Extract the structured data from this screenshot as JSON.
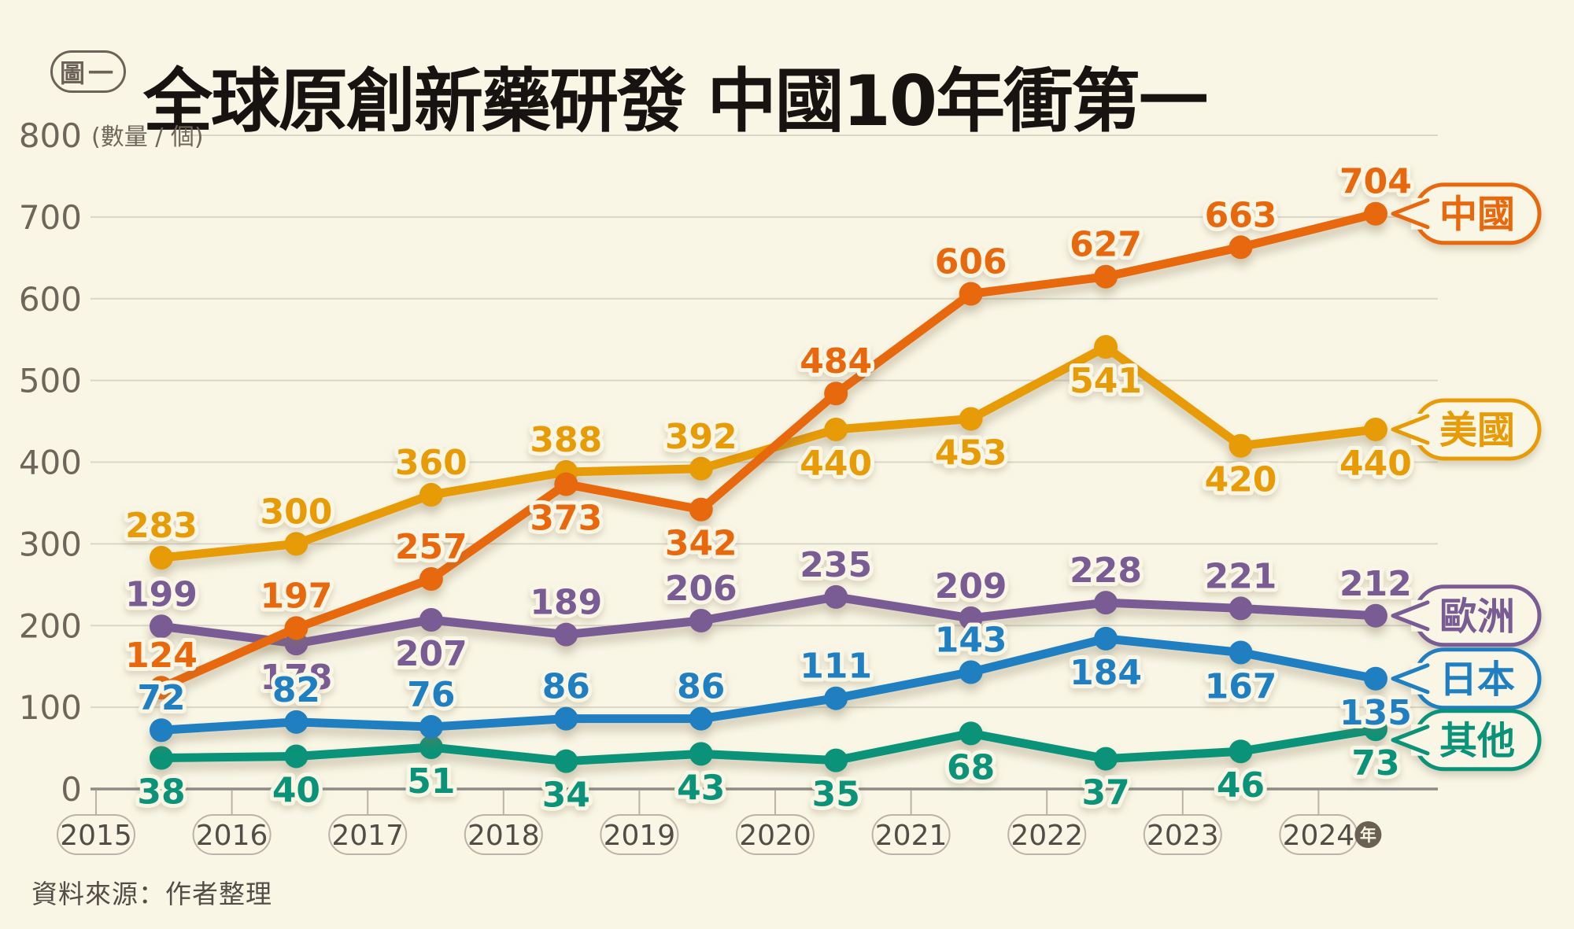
{
  "figure_badge": {
    "text": "圖一"
  },
  "title": "全球原創新藥研發 中國10年衝第一",
  "source": "資料來源：作者整理",
  "ui_colors": {
    "background": "#F9F6E5",
    "title": "#161310",
    "grid": "#DAD7C8",
    "axis": "#8C8C86",
    "tick": "#B9B4A7",
    "pill_border": "#B9B4A7",
    "y_label": "#6E665B",
    "year_label": "#524D46",
    "year_badge_bg": "#6B6054",
    "year_badge_text": "#F9F6E5",
    "figure_badge": "#6B6358",
    "source_text": "#524D46"
  },
  "chart_data": {
    "type": "line",
    "title": "全球原創新藥研發 中國10年衝第一",
    "unit_label": "(數量 / 個)",
    "ylabel": "數量/個",
    "xlabel": "年",
    "ylim": [
      0,
      800
    ],
    "y_ticks": [
      0,
      100,
      200,
      300,
      400,
      500,
      600,
      700,
      800
    ],
    "grid": true,
    "legend_position": "right",
    "x_unit_badge": "年",
    "categories": [
      "2015",
      "2016",
      "2017",
      "2018",
      "2019",
      "2020",
      "2021",
      "2022",
      "2023",
      "2024"
    ],
    "series": [
      {
        "id": "china",
        "name": "中國",
        "color": "#E8680E",
        "values": [
          124,
          197,
          257,
          373,
          342,
          484,
          606,
          627,
          663,
          704
        ],
        "label_side": [
          "above",
          "above",
          "above",
          "below",
          "below",
          "above",
          "above",
          "above",
          "above",
          "above"
        ]
      },
      {
        "id": "usa",
        "name": "美國",
        "color": "#E79B06",
        "values": [
          283,
          300,
          360,
          388,
          392,
          440,
          453,
          541,
          420,
          440
        ],
        "label_side": [
          "above",
          "above",
          "above",
          "above",
          "above",
          "below",
          "below",
          "below",
          "below",
          "below"
        ]
      },
      {
        "id": "europe",
        "name": "歐洲",
        "color": "#7A5C94",
        "values": [
          199,
          178,
          207,
          189,
          206,
          235,
          209,
          228,
          221,
          212
        ],
        "label_side": [
          "above",
          "below",
          "below",
          "above",
          "above",
          "above",
          "above",
          "above",
          "above",
          "above"
        ]
      },
      {
        "id": "japan",
        "name": "日本",
        "color": "#1F7FC1",
        "values": [
          72,
          82,
          76,
          86,
          86,
          111,
          143,
          184,
          167,
          135
        ],
        "label_side": [
          "above",
          "above",
          "above",
          "above",
          "above",
          "above",
          "above",
          "below",
          "below",
          "below"
        ]
      },
      {
        "id": "others",
        "name": "其他",
        "color": "#0A9379",
        "values": [
          38,
          40,
          51,
          34,
          43,
          35,
          68,
          37,
          46,
          73
        ],
        "label_side": [
          "below",
          "below",
          "below",
          "below",
          "below",
          "below",
          "below",
          "below",
          "below",
          "below"
        ]
      }
    ]
  }
}
